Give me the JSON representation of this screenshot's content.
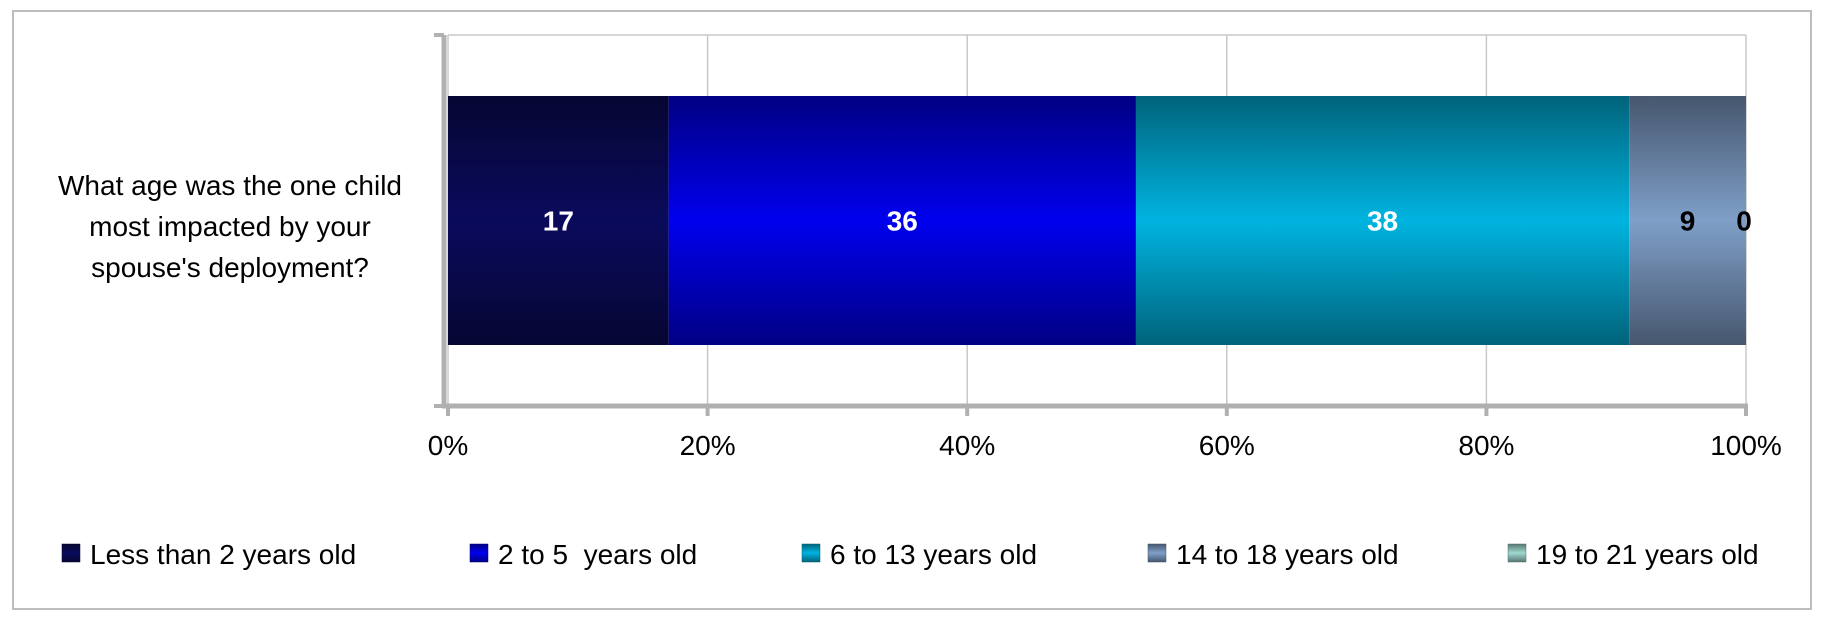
{
  "chart_data": {
    "type": "bar",
    "orientation": "horizontal",
    "stacked": "percent",
    "categories": [
      "What age was the one child most impacted by your spouse's deployment?"
    ],
    "category_label_lines": [
      "What age was the one child",
      "most impacted by your",
      "spouse's deployment?"
    ],
    "series": [
      {
        "name": "Less than 2 years old",
        "values": [
          17
        ],
        "color": "#0a0a5c"
      },
      {
        "name": "2 to 5  years old",
        "values": [
          36
        ],
        "color": "#0000ee"
      },
      {
        "name": "6 to 13 years old",
        "values": [
          38
        ],
        "color": "#00b4e0"
      },
      {
        "name": "14 to 18 years old",
        "values": [
          9
        ],
        "color": "#7f9fc8"
      },
      {
        "name": "19 to 21 years old",
        "values": [
          0
        ],
        "color": "#9fd8d0"
      }
    ],
    "data_labels": [
      "17",
      "36",
      "38",
      "9",
      "0"
    ],
    "x_ticks": [
      "0%",
      "20%",
      "40%",
      "60%",
      "80%",
      "100%"
    ],
    "xlim": [
      0,
      100
    ],
    "grid": true,
    "legend_position": "bottom",
    "title": "",
    "xlabel": "",
    "ylabel": ""
  }
}
